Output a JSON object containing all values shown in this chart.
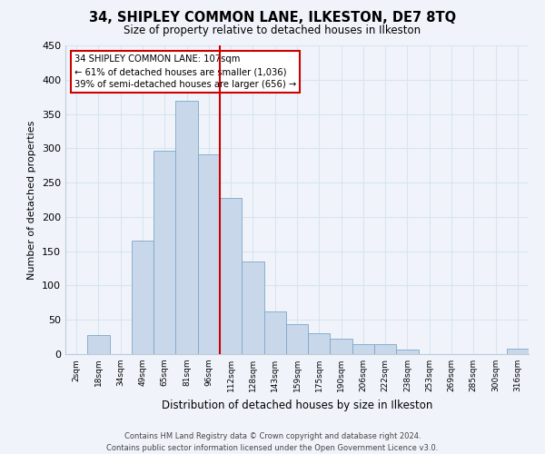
{
  "title": "34, SHIPLEY COMMON LANE, ILKESTON, DE7 8TQ",
  "subtitle": "Size of property relative to detached houses in Ilkeston",
  "xlabel": "Distribution of detached houses by size in Ilkeston",
  "ylabel": "Number of detached properties",
  "bar_color": "#c8d8ea",
  "bar_edge_color": "#7aa8c8",
  "categories": [
    "2sqm",
    "18sqm",
    "34sqm",
    "49sqm",
    "65sqm",
    "81sqm",
    "96sqm",
    "112sqm",
    "128sqm",
    "143sqm",
    "159sqm",
    "175sqm",
    "190sqm",
    "206sqm",
    "222sqm",
    "238sqm",
    "253sqm",
    "269sqm",
    "285sqm",
    "300sqm",
    "316sqm"
  ],
  "values": [
    0,
    28,
    0,
    166,
    297,
    369,
    291,
    228,
    135,
    62,
    44,
    31,
    22,
    15,
    15,
    7,
    0,
    0,
    0,
    0,
    8
  ],
  "ylim": [
    0,
    450
  ],
  "yticks": [
    0,
    50,
    100,
    150,
    200,
    250,
    300,
    350,
    400,
    450
  ],
  "vline_x": 7,
  "annotation_text_lines": [
    "34 SHIPLEY COMMON LANE: 107sqm",
    "← 61% of detached houses are smaller (1,036)",
    "39% of semi-detached houses are larger (656) →"
  ],
  "footer_line1": "Contains HM Land Registry data © Crown copyright and database right 2024.",
  "footer_line2": "Contains public sector information licensed under the Open Government Licence v3.0.",
  "grid_color": "#d8e4f0",
  "vline_color": "#cc0000",
  "background_color": "#f0f4fa"
}
